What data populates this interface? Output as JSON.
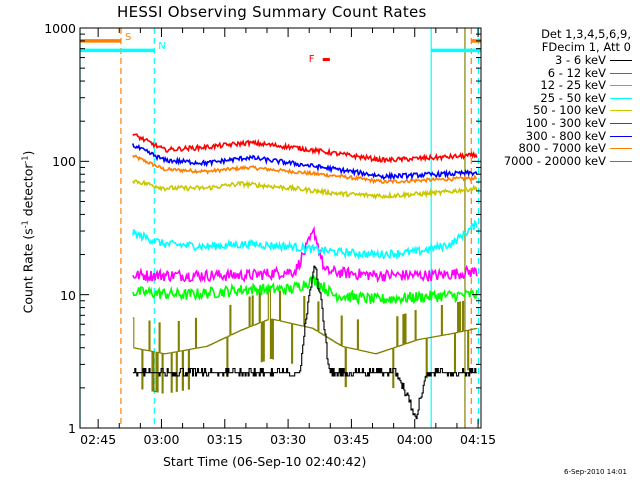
{
  "chart_data": {
    "type": "line",
    "title": "HESSI Observing Summary Count Rates",
    "xlabel": "Start Time (06-Sep-10 02:40:42)",
    "ylabel_parts": [
      "Count Rate (s",
      "-1",
      " detector",
      "-1",
      ")"
    ],
    "y_scale": "log",
    "ylim": [
      1,
      1000
    ],
    "xlim_minutes": [
      0,
      95
    ],
    "x_unit": "minutes after 02:40:42",
    "grid": false,
    "legend_placement": "right",
    "legend_header": [
      "Det 1,3,4,5,6,9,",
      "FDecim 1, Att 0"
    ],
    "y_ticks": [
      {
        "value": 1,
        "label": "1"
      },
      {
        "value": 10,
        "label": "10"
      },
      {
        "value": 100,
        "label": "100"
      },
      {
        "value": 1000,
        "label": "1000"
      }
    ],
    "x_ticks": [
      {
        "minutes": 4.3,
        "label": "02:45"
      },
      {
        "minutes": 19.3,
        "label": "03:00"
      },
      {
        "minutes": 34.3,
        "label": "03:15"
      },
      {
        "minutes": 49.3,
        "label": "03:30"
      },
      {
        "minutes": 64.3,
        "label": "03:45"
      },
      {
        "minutes": 79.3,
        "label": "04:00"
      },
      {
        "minutes": 94.3,
        "label": "04:15"
      }
    ],
    "series": [
      {
        "name": "3 - 6 keV",
        "color": "#000000",
        "base": 2.6,
        "spread": 0.1,
        "noise": 0.42,
        "knots": [
          [
            12.5,
            2.6
          ],
          [
            40,
            2.6
          ],
          [
            52,
            2.6
          ],
          [
            54,
            9
          ],
          [
            55.5,
            17
          ],
          [
            57,
            9
          ],
          [
            59,
            2.6
          ],
          [
            75,
            2.6
          ],
          [
            79.5,
            1.2
          ],
          [
            82,
            2.6
          ],
          [
            95,
            2.6
          ]
        ]
      },
      {
        "name": "6 - 12 keV",
        "color": "#ff00ff",
        "noise": 0.1,
        "knots": [
          [
            12.5,
            14
          ],
          [
            25,
            14
          ],
          [
            40,
            14
          ],
          [
            51,
            15
          ],
          [
            55.5,
            30
          ],
          [
            58,
            15
          ],
          [
            70,
            14
          ],
          [
            85,
            14
          ],
          [
            94,
            15
          ]
        ]
      },
      {
        "name": "12 - 25 keV",
        "color": "#00ff00",
        "noise": 0.1,
        "knots": [
          [
            12.5,
            10.5
          ],
          [
            25,
            10
          ],
          [
            40,
            11
          ],
          [
            50,
            11
          ],
          [
            55.5,
            13
          ],
          [
            60,
            10
          ],
          [
            70,
            9.2
          ],
          [
            85,
            9.8
          ],
          [
            94,
            10
          ]
        ]
      },
      {
        "name": "25 - 50 keV",
        "color": "#00ffff",
        "noise": 0.07,
        "knots": [
          [
            12.5,
            29
          ],
          [
            20,
            24
          ],
          [
            30,
            23
          ],
          [
            40,
            24
          ],
          [
            50,
            23
          ],
          [
            60,
            21
          ],
          [
            70,
            20
          ],
          [
            80,
            21
          ],
          [
            88,
            24
          ],
          [
            94,
            34
          ]
        ]
      },
      {
        "name": "50 - 100 keV",
        "color": "#c8c800",
        "noise": 0.04,
        "knots": [
          [
            12.5,
            72
          ],
          [
            20,
            63
          ],
          [
            30,
            63
          ],
          [
            38,
            68
          ],
          [
            50,
            63
          ],
          [
            62,
            57
          ],
          [
            72,
            55
          ],
          [
            85,
            58
          ],
          [
            94,
            63
          ]
        ]
      },
      {
        "name": "100 - 300 keV",
        "color": "#ff0000",
        "noise": 0.04,
        "knots": [
          [
            12.5,
            160
          ],
          [
            20,
            122
          ],
          [
            30,
            128
          ],
          [
            40,
            138
          ],
          [
            50,
            128
          ],
          [
            62,
            113
          ],
          [
            72,
            102
          ],
          [
            85,
            107
          ],
          [
            94,
            111
          ]
        ]
      },
      {
        "name": "300 - 800 keV",
        "color": "#0000ff",
        "noise": 0.04,
        "knots": [
          [
            12.5,
            132
          ],
          [
            20,
            102
          ],
          [
            30,
            97
          ],
          [
            40,
            107
          ],
          [
            50,
            97
          ],
          [
            62,
            86
          ],
          [
            72,
            77
          ],
          [
            85,
            80
          ],
          [
            94,
            82
          ]
        ]
      },
      {
        "name": "800 - 7000 keV",
        "color": "#ff7f00",
        "noise": 0.03,
        "knots": [
          [
            12.5,
            110
          ],
          [
            20,
            87
          ],
          [
            30,
            84
          ],
          [
            40,
            90
          ],
          [
            50,
            84
          ],
          [
            62,
            77
          ],
          [
            72,
            70
          ],
          [
            85,
            73
          ],
          [
            94,
            75
          ]
        ]
      },
      {
        "name": "7000 - 20000 keV",
        "color": "#808000",
        "base": 3.6,
        "spread": 0.9,
        "noise": 0.12,
        "knots": [
          [
            12.5,
            4.0
          ],
          [
            20,
            3.6
          ],
          [
            30,
            4.1
          ],
          [
            38,
            5.4
          ],
          [
            45,
            6.6
          ],
          [
            55,
            5.6
          ],
          [
            62,
            4.1
          ],
          [
            70,
            3.6
          ],
          [
            80,
            4.6
          ],
          [
            88,
            5.1
          ],
          [
            94,
            5.6
          ]
        ]
      }
    ],
    "flags": [
      {
        "label": "S",
        "color": "#ff7f00",
        "level": 800,
        "segments": [
          [
            0,
            9.7
          ],
          [
            92.7,
            95
          ]
        ]
      },
      {
        "label": "N",
        "color": "#00ffff",
        "level": 680,
        "segments": [
          [
            0,
            17.6
          ],
          [
            83.2,
            95
          ]
        ]
      },
      {
        "label": "F",
        "color": "#ff0000",
        "level": 580,
        "segments": [
          [
            57.5,
            59.2
          ]
        ]
      }
    ],
    "vlines": [
      {
        "minutes": 0,
        "color": "#00ffff",
        "style": "solid"
      },
      {
        "minutes": 9.7,
        "color": "#ff7f00",
        "style": "dashed"
      },
      {
        "minutes": 17.6,
        "color": "#00ffff",
        "style": "dashed"
      },
      {
        "minutes": 83.2,
        "color": "#00ffff",
        "style": "solid"
      },
      {
        "minutes": 91.2,
        "color": "#808000",
        "style": "solid"
      },
      {
        "minutes": 92.7,
        "color": "#ff7f00",
        "style": "dashed"
      },
      {
        "minutes": 94.4,
        "color": "#00ffff",
        "style": "dashed"
      }
    ]
  },
  "timestamp": "6-Sep-2010 14:01"
}
